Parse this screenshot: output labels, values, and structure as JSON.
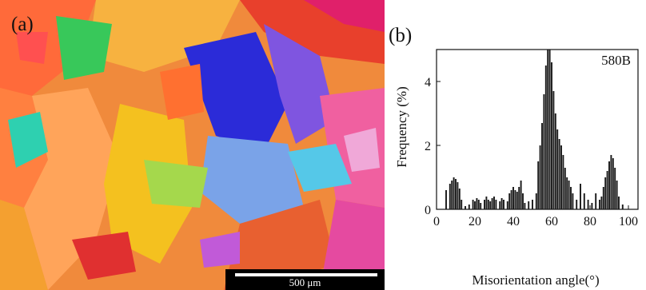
{
  "figure": {
    "panel_a_label": "(a)",
    "panel_b_label": "(b)",
    "scale_bar_text": "500 μm"
  },
  "chart_data": {
    "type": "bar",
    "title": "",
    "annotation": "580B",
    "xlabel": "Misorientation angle(°)",
    "ylabel": "Frequency (%)",
    "xlim": [
      0,
      105
    ],
    "ylim": [
      0,
      5
    ],
    "xticks": [
      0,
      20,
      40,
      60,
      80,
      100
    ],
    "yticks": [
      0,
      2,
      4
    ],
    "x": [
      5,
      7,
      8,
      9,
      10,
      11,
      12,
      13,
      15,
      17,
      19,
      20,
      21,
      22,
      23,
      25,
      26,
      27,
      28,
      29,
      30,
      31,
      33,
      34,
      35,
      37,
      38,
      39,
      40,
      41,
      42,
      43,
      44,
      45,
      46,
      48,
      50,
      52,
      53,
      54,
      55,
      56,
      57,
      58,
      59,
      60,
      61,
      62,
      63,
      64,
      65,
      66,
      67,
      68,
      69,
      70,
      71,
      73,
      75,
      77,
      79,
      81,
      83,
      85,
      86,
      87,
      88,
      89,
      90,
      91,
      92,
      93,
      94,
      95,
      97
    ],
    "values": [
      0.6,
      0.8,
      0.9,
      1.0,
      0.95,
      0.85,
      0.65,
      0.3,
      0.1,
      0.15,
      0.3,
      0.25,
      0.35,
      0.3,
      0.2,
      0.3,
      0.4,
      0.3,
      0.25,
      0.35,
      0.4,
      0.3,
      0.25,
      0.35,
      0.3,
      0.25,
      0.5,
      0.6,
      0.7,
      0.6,
      0.55,
      0.7,
      0.9,
      0.5,
      0.2,
      0.25,
      0.3,
      0.5,
      1.5,
      2.0,
      2.7,
      3.6,
      4.5,
      5.0,
      5.0,
      4.6,
      3.7,
      3.0,
      2.5,
      2.2,
      2.0,
      1.7,
      1.3,
      1.0,
      0.9,
      0.7,
      0.5,
      0.3,
      0.8,
      0.5,
      0.3,
      0.2,
      0.5,
      0.3,
      0.4,
      0.7,
      1.0,
      1.2,
      1.5,
      1.7,
      1.6,
      1.3,
      0.9,
      0.4,
      0.15
    ]
  }
}
